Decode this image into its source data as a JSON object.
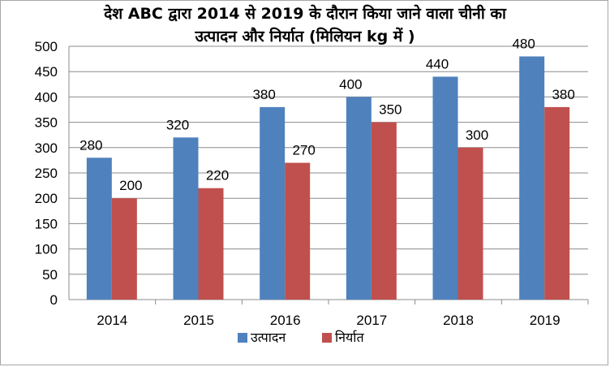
{
  "chart_data": {
    "type": "bar",
    "title_line1": "देश ABC द्वारा 2014 से 2019 के दौरान किया जाने वाला चीनी का",
    "title_line2": "उत्पादन और निर्यात (मिलियन kg में )",
    "categories": [
      "2014",
      "2015",
      "2016",
      "2017",
      "2018",
      "2019"
    ],
    "series": [
      {
        "name": "उत्पादन",
        "color": "#4f81bd",
        "values": [
          280,
          320,
          380,
          400,
          440,
          480
        ]
      },
      {
        "name": "निर्यात",
        "color": "#c0504d",
        "values": [
          200,
          220,
          270,
          350,
          300,
          380
        ]
      }
    ],
    "ylim": [
      0,
      500
    ],
    "yticks": [
      0,
      50,
      100,
      150,
      200,
      250,
      300,
      350,
      400,
      450,
      500
    ],
    "grid": true,
    "legend_position": "bottom"
  }
}
